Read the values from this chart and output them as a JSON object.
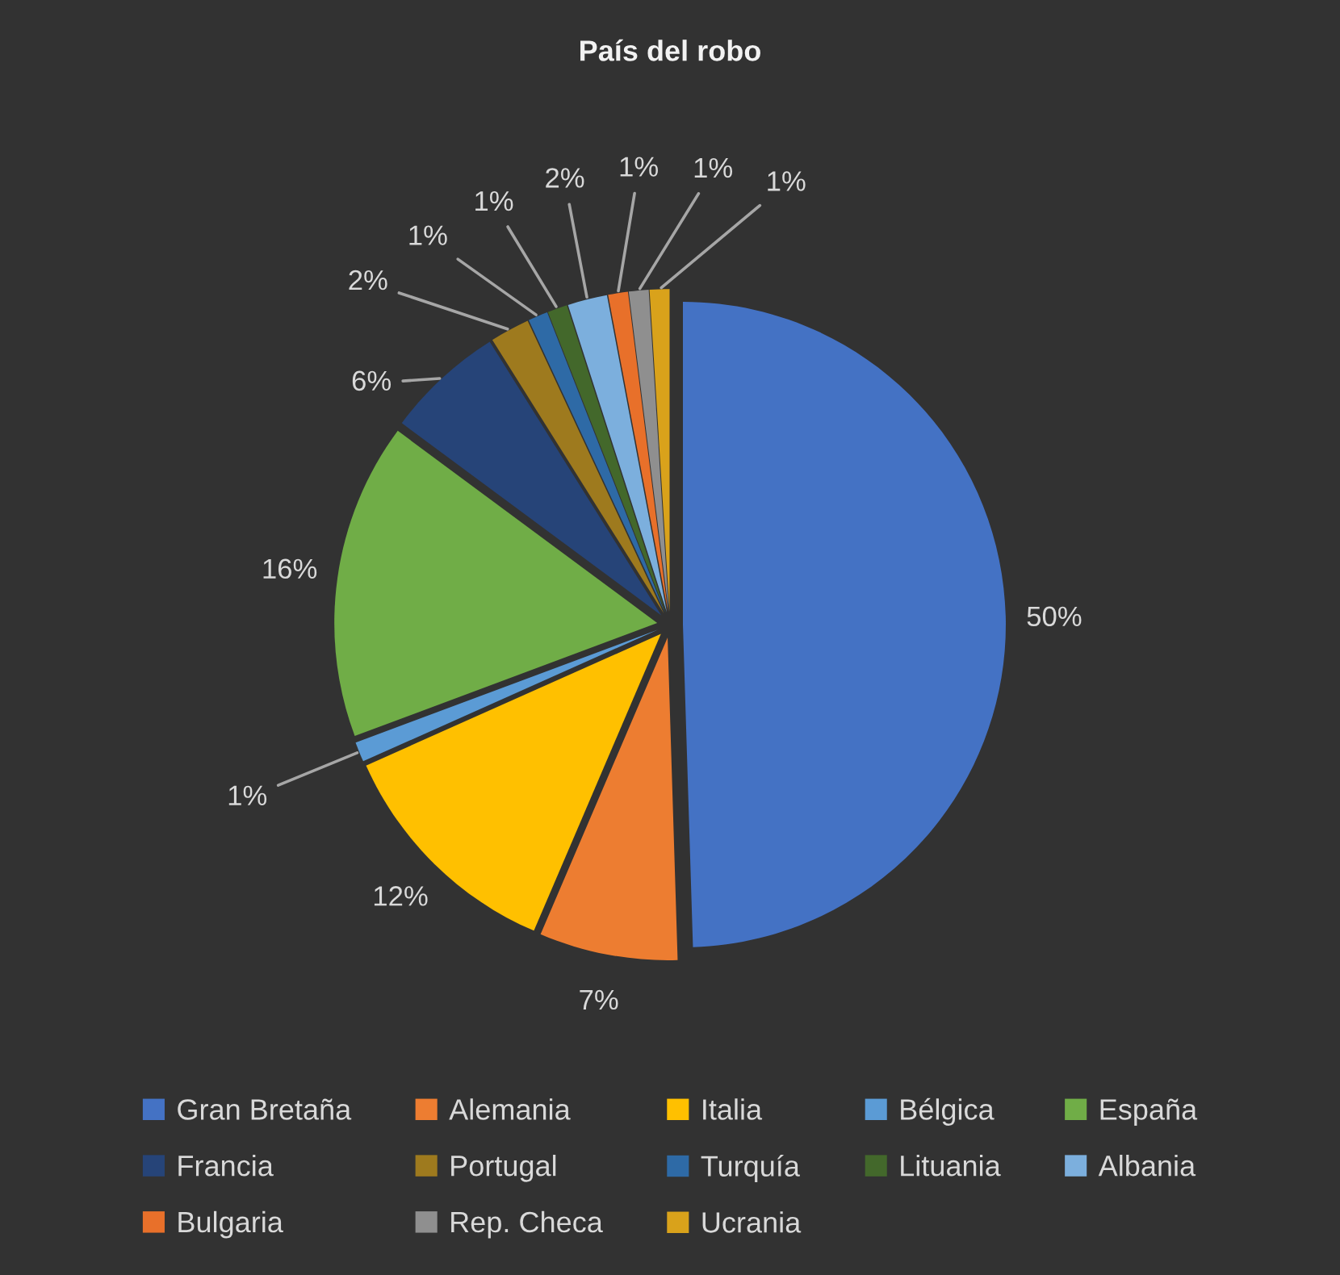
{
  "chart_data": {
    "type": "pie",
    "title": "País del robo",
    "categories": [
      "Gran Bretaña",
      "Alemania",
      "Italia",
      "Bélgica",
      "España",
      "Francia",
      "Portugal",
      "Turquía",
      "Lituania",
      "Albania",
      "Bulgaria",
      "Rep. Checa",
      "Ucrania"
    ],
    "values": [
      50,
      7,
      12,
      1,
      16,
      6,
      2,
      1,
      1,
      2,
      1,
      1,
      1
    ],
    "colors": [
      "#4472c4",
      "#ed7d31",
      "#ffc000",
      "#5b9bd5",
      "#70ad47",
      "#264478",
      "#9e7a1e",
      "#2e6aa6",
      "#43682b",
      "#7cafdd",
      "#e8702a",
      "#8f8f8f",
      "#d9a21b"
    ],
    "value_labels": [
      "50%",
      "7%",
      "12%",
      "1%",
      "16%",
      "6%",
      "2%",
      "1%",
      "1%",
      "2%",
      "1%",
      "1%",
      "1%"
    ],
    "legend": "bottom"
  }
}
